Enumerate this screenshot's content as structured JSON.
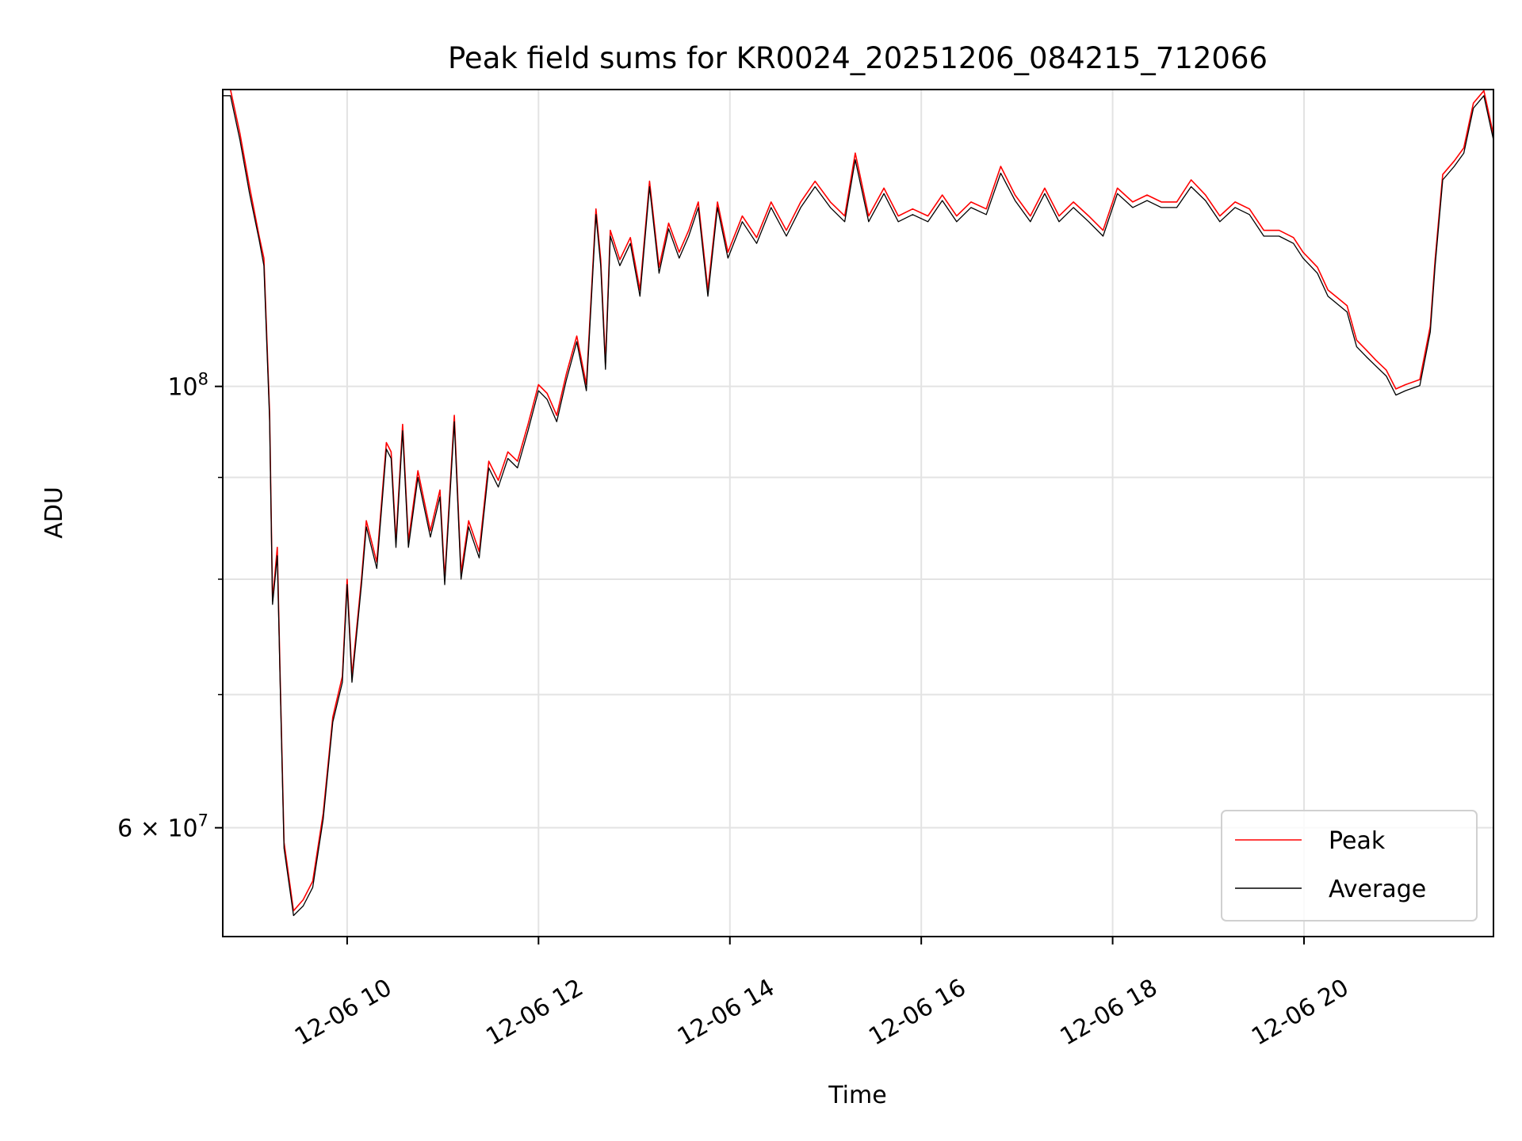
{
  "chart_data": {
    "type": "line",
    "title": "Peak field sums for KR0024_20251206_084215_712066",
    "xlabel": "Time",
    "ylabel": "ADU",
    "yscale": "log",
    "xlim_hours": [
      8.7,
      21.98
    ],
    "ylim": [
      52900000.0,
      141000000.0
    ],
    "grid": true,
    "legend_position": "bottom-right",
    "x_ticks": [
      {
        "hour": 10,
        "label": "12-06 10"
      },
      {
        "hour": 12,
        "label": "12-06 12"
      },
      {
        "hour": 14,
        "label": "12-06 14"
      },
      {
        "hour": 16,
        "label": "12-06 16"
      },
      {
        "hour": 18,
        "label": "12-06 18"
      },
      {
        "hour": 20,
        "label": "12-06 20"
      }
    ],
    "y_major_ticks": [
      {
        "value": 100000000.0,
        "prefix": "",
        "base": "10",
        "exp": "8"
      },
      {
        "value": 60000000.0,
        "prefix": "6 × ",
        "base": "10",
        "exp": "7"
      }
    ],
    "y_minor_gridlines": [
      70000000.0,
      80000000.0,
      90000000.0
    ],
    "x_hours": [
      8.7,
      8.78,
      8.88,
      8.98,
      9.08,
      9.13,
      9.19,
      9.22,
      9.27,
      9.3,
      9.34,
      9.44,
      9.54,
      9.64,
      9.75,
      9.85,
      9.95,
      10.0,
      10.05,
      10.15,
      10.2,
      10.31,
      10.41,
      10.46,
      10.51,
      10.58,
      10.64,
      10.74,
      10.87,
      10.97,
      11.02,
      11.12,
      11.19,
      11.27,
      11.38,
      11.48,
      11.58,
      11.68,
      11.78,
      11.89,
      12.0,
      12.09,
      12.19,
      12.29,
      12.4,
      12.5,
      12.55,
      12.6,
      12.65,
      12.7,
      12.75,
      12.85,
      12.96,
      13.06,
      13.16,
      13.26,
      13.36,
      13.47,
      13.57,
      13.67,
      13.77,
      13.87,
      13.98,
      14.13,
      14.28,
      14.43,
      14.59,
      14.74,
      14.89,
      15.05,
      15.2,
      15.31,
      15.45,
      15.61,
      15.76,
      15.91,
      16.07,
      16.22,
      16.37,
      16.52,
      16.68,
      16.83,
      16.98,
      17.14,
      17.29,
      17.44,
      17.59,
      17.75,
      17.9,
      18.05,
      18.21,
      18.36,
      18.51,
      18.67,
      18.82,
      18.97,
      19.12,
      19.28,
      19.43,
      19.58,
      19.74,
      19.89,
      19.99,
      20.14,
      20.25,
      20.35,
      20.45,
      20.55,
      20.65,
      20.75,
      20.86,
      20.96,
      21.06,
      21.21,
      21.32,
      21.37,
      21.45,
      21.57,
      21.67,
      21.77,
      21.88,
      21.98
    ],
    "series": [
      {
        "name": "Peak",
        "color": "#ff0000",
        "values": [
          141000000.0,
          141000000.0,
          134000000.0,
          126000000.0,
          119000000.0,
          116000000.0,
          97000000.0,
          78000000.0,
          83000000.0,
          71500000.0,
          59000000.0,
          54500000.0,
          55200000.0,
          56400000.0,
          61000000.0,
          68200000.0,
          71500000.0,
          80000000.0,
          71500000.0,
          80000000.0,
          85600000.0,
          81600000.0,
          93700000.0,
          92700000.0,
          83600000.0,
          95700000.0,
          83600000.0,
          90700000.0,
          84600000.0,
          88700000.0,
          80000000.0,
          96700000.0,
          80600000.0,
          85600000.0,
          82600000.0,
          91700000.0,
          89700000.0,
          92700000.0,
          91700000.0,
          95700000.0,
          100200000.0,
          99200000.0,
          96700000.0,
          101400000.0,
          106000000.0,
          100200000.0,
          110800000.0,
          122800000.0,
          115800000.0,
          102700000.0,
          119800000.0,
          115800000.0,
          118800000.0,
          111800000.0,
          126800000.0,
          114800000.0,
          120800000.0,
          116800000.0,
          119800000.0,
          123800000.0,
          111800000.0,
          123800000.0,
          116800000.0,
          121800000.0,
          118800000.0,
          123800000.0,
          119800000.0,
          123800000.0,
          126800000.0,
          123800000.0,
          121800000.0,
          131000000.0,
          121800000.0,
          125800000.0,
          121800000.0,
          122800000.0,
          121800000.0,
          124800000.0,
          121800000.0,
          123800000.0,
          122800000.0,
          129000000.0,
          124800000.0,
          121800000.0,
          125800000.0,
          121800000.0,
          123800000.0,
          121800000.0,
          119800000.0,
          125800000.0,
          123800000.0,
          124800000.0,
          123800000.0,
          123800000.0,
          127000000.0,
          124800000.0,
          121800000.0,
          123800000.0,
          122800000.0,
          119800000.0,
          119800000.0,
          118800000.0,
          116800000.0,
          114800000.0,
          111800000.0,
          110800000.0,
          109800000.0,
          105500000.0,
          104300000.0,
          103100000.0,
          101900000.0,
          99700000.0,
          100200000.0,
          100800000.0,
          107200000.0,
          115800000.0,
          127800000.0,
          129800000.0,
          131800000.0,
          138800000.0,
          140800000.0,
          133800000.0
        ]
      },
      {
        "name": "Average",
        "color": "#000000",
        "values": [
          140000000.0,
          140000000.0,
          133000000.0,
          125000000.0,
          118500000.0,
          115000000.0,
          96200000.0,
          77700000.0,
          82200000.0,
          71000000.0,
          58600000.0,
          54200000.0,
          54800000.0,
          56000000.0,
          60600000.0,
          67800000.0,
          71000000.0,
          79500000.0,
          71000000.0,
          79500000.0,
          85000000.0,
          81000000.0,
          93000000.0,
          92000000.0,
          83000000.0,
          95000000.0,
          83000000.0,
          90000000.0,
          84000000.0,
          88000000.0,
          79500000.0,
          96000000.0,
          80000000.0,
          85000000.0,
          82000000.0,
          91000000.0,
          89000000.0,
          92000000.0,
          91000000.0,
          95000000.0,
          99500000.0,
          98500000.0,
          96000000.0,
          100700000.0,
          105300000.0,
          99500000.0,
          110000000.0,
          122000000.0,
          115000000.0,
          102000000.0,
          119000000.0,
          115000000.0,
          118000000.0,
          111000000.0,
          126000000.0,
          114000000.0,
          120000000.0,
          116000000.0,
          119000000.0,
          123000000.0,
          111000000.0,
          123000000.0,
          116000000.0,
          121000000.0,
          118000000.0,
          123000000.0,
          119000000.0,
          123000000.0,
          126000000.0,
          123000000.0,
          121000000.0,
          130000000.0,
          121000000.0,
          125000000.0,
          121000000.0,
          122000000.0,
          121000000.0,
          124000000.0,
          121000000.0,
          123000000.0,
          122000000.0,
          128000000.0,
          124000000.0,
          121000000.0,
          125000000.0,
          121000000.0,
          123000000.0,
          121000000.0,
          119000000.0,
          125000000.0,
          123000000.0,
          124000000.0,
          123000000.0,
          123000000.0,
          126000000.0,
          124000000.0,
          121000000.0,
          123000000.0,
          122000000.0,
          119000000.0,
          119000000.0,
          118000000.0,
          116000000.0,
          114000000.0,
          111000000.0,
          110000000.0,
          109000000.0,
          104700000.0,
          103500000.0,
          102400000.0,
          101200000.0,
          99000000.0,
          99500000.0,
          100100000.0,
          106500000.0,
          115000000.0,
          127000000.0,
          129000000.0,
          131000000.0,
          138000000.0,
          140000000.0,
          133000000.0
        ]
      }
    ]
  }
}
